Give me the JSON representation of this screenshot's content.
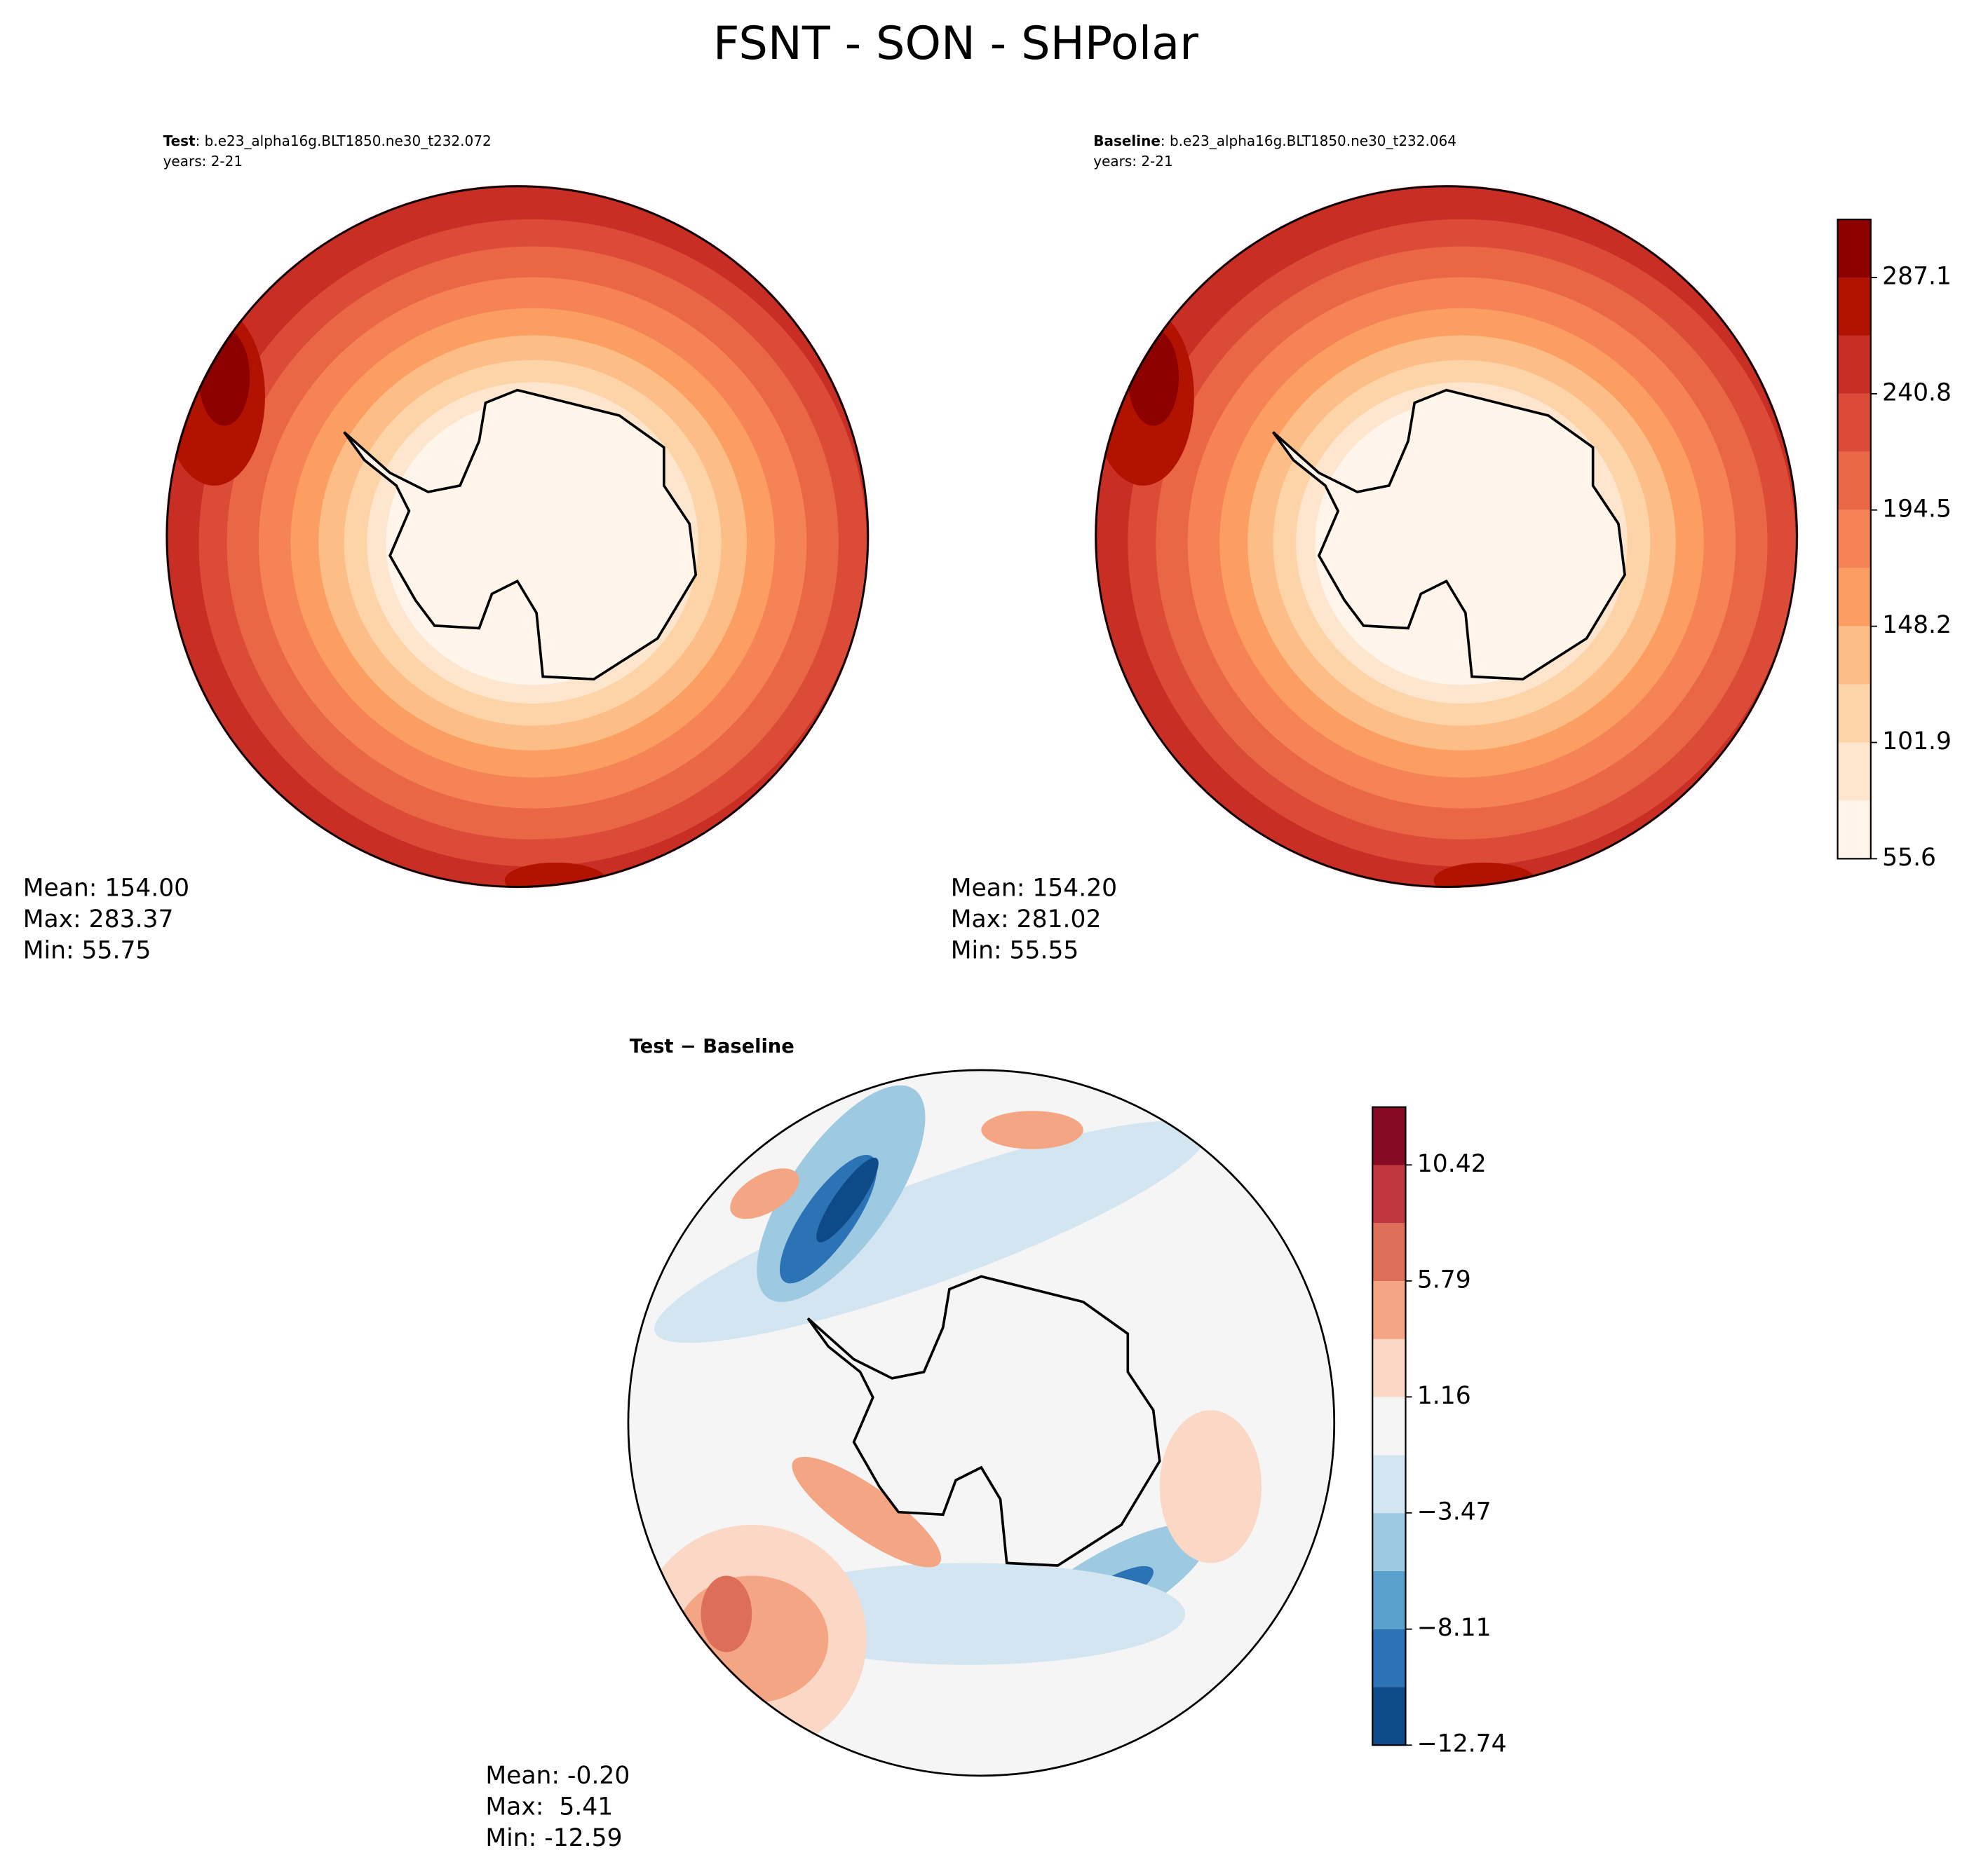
{
  "title": "FSNT - SON - SHPolar",
  "panels": [
    {
      "name": "Test",
      "case": ": b.e23_alpha16g.BLT1850.ne30_t232.072",
      "years": "years: 2-21",
      "stats": [
        "Mean: 154.00",
        "Max: 283.37",
        "Min: 55.75"
      ]
    },
    {
      "name": "Baseline",
      "case": ": b.e23_alpha16g.BLT1850.ne30_t232.064",
      "years": "years: 2-21",
      "stats": [
        "Mean: 154.20",
        "Max: 281.02",
        "Min: 55.55"
      ]
    }
  ],
  "difference": {
    "label": "Test − Baseline",
    "stats": [
      "Mean: -0.20",
      "Max:  5.41",
      "Min: -12.59"
    ]
  },
  "colorbars": [
    {
      "lim": [
        55.6,
        310.25
      ],
      "ticks": [
        55.6,
        101.9,
        148.2,
        194.5,
        240.8,
        287.1
      ],
      "colors": [
        "#fff5eb",
        "#fee6ce",
        "#fdd4a8",
        "#fdbd86",
        "#fc9d61",
        "#f58355",
        "#ea6745",
        "#dc4b38",
        "#c92e24",
        "#b21200",
        "#8c0000"
      ]
    },
    {
      "lim": [
        -12.74,
        12.73
      ],
      "ticks": [
        {
          "value": -12.74,
          "label": "−12.74"
        },
        {
          "value": -8.11,
          "label": "−8.11"
        },
        {
          "value": -3.47,
          "label": "−3.47"
        },
        1.16,
        5.79,
        10.42
      ],
      "colors": [
        "#0d4a87",
        "#2b73b4",
        "#5aa1ce",
        "#9ecae1",
        "#d3e5f1",
        "#f5f5f5",
        "#fbd7c6",
        "#f4a684",
        "#dd6f59",
        "#c1363f",
        "#860a24"
      ]
    }
  ]
}
